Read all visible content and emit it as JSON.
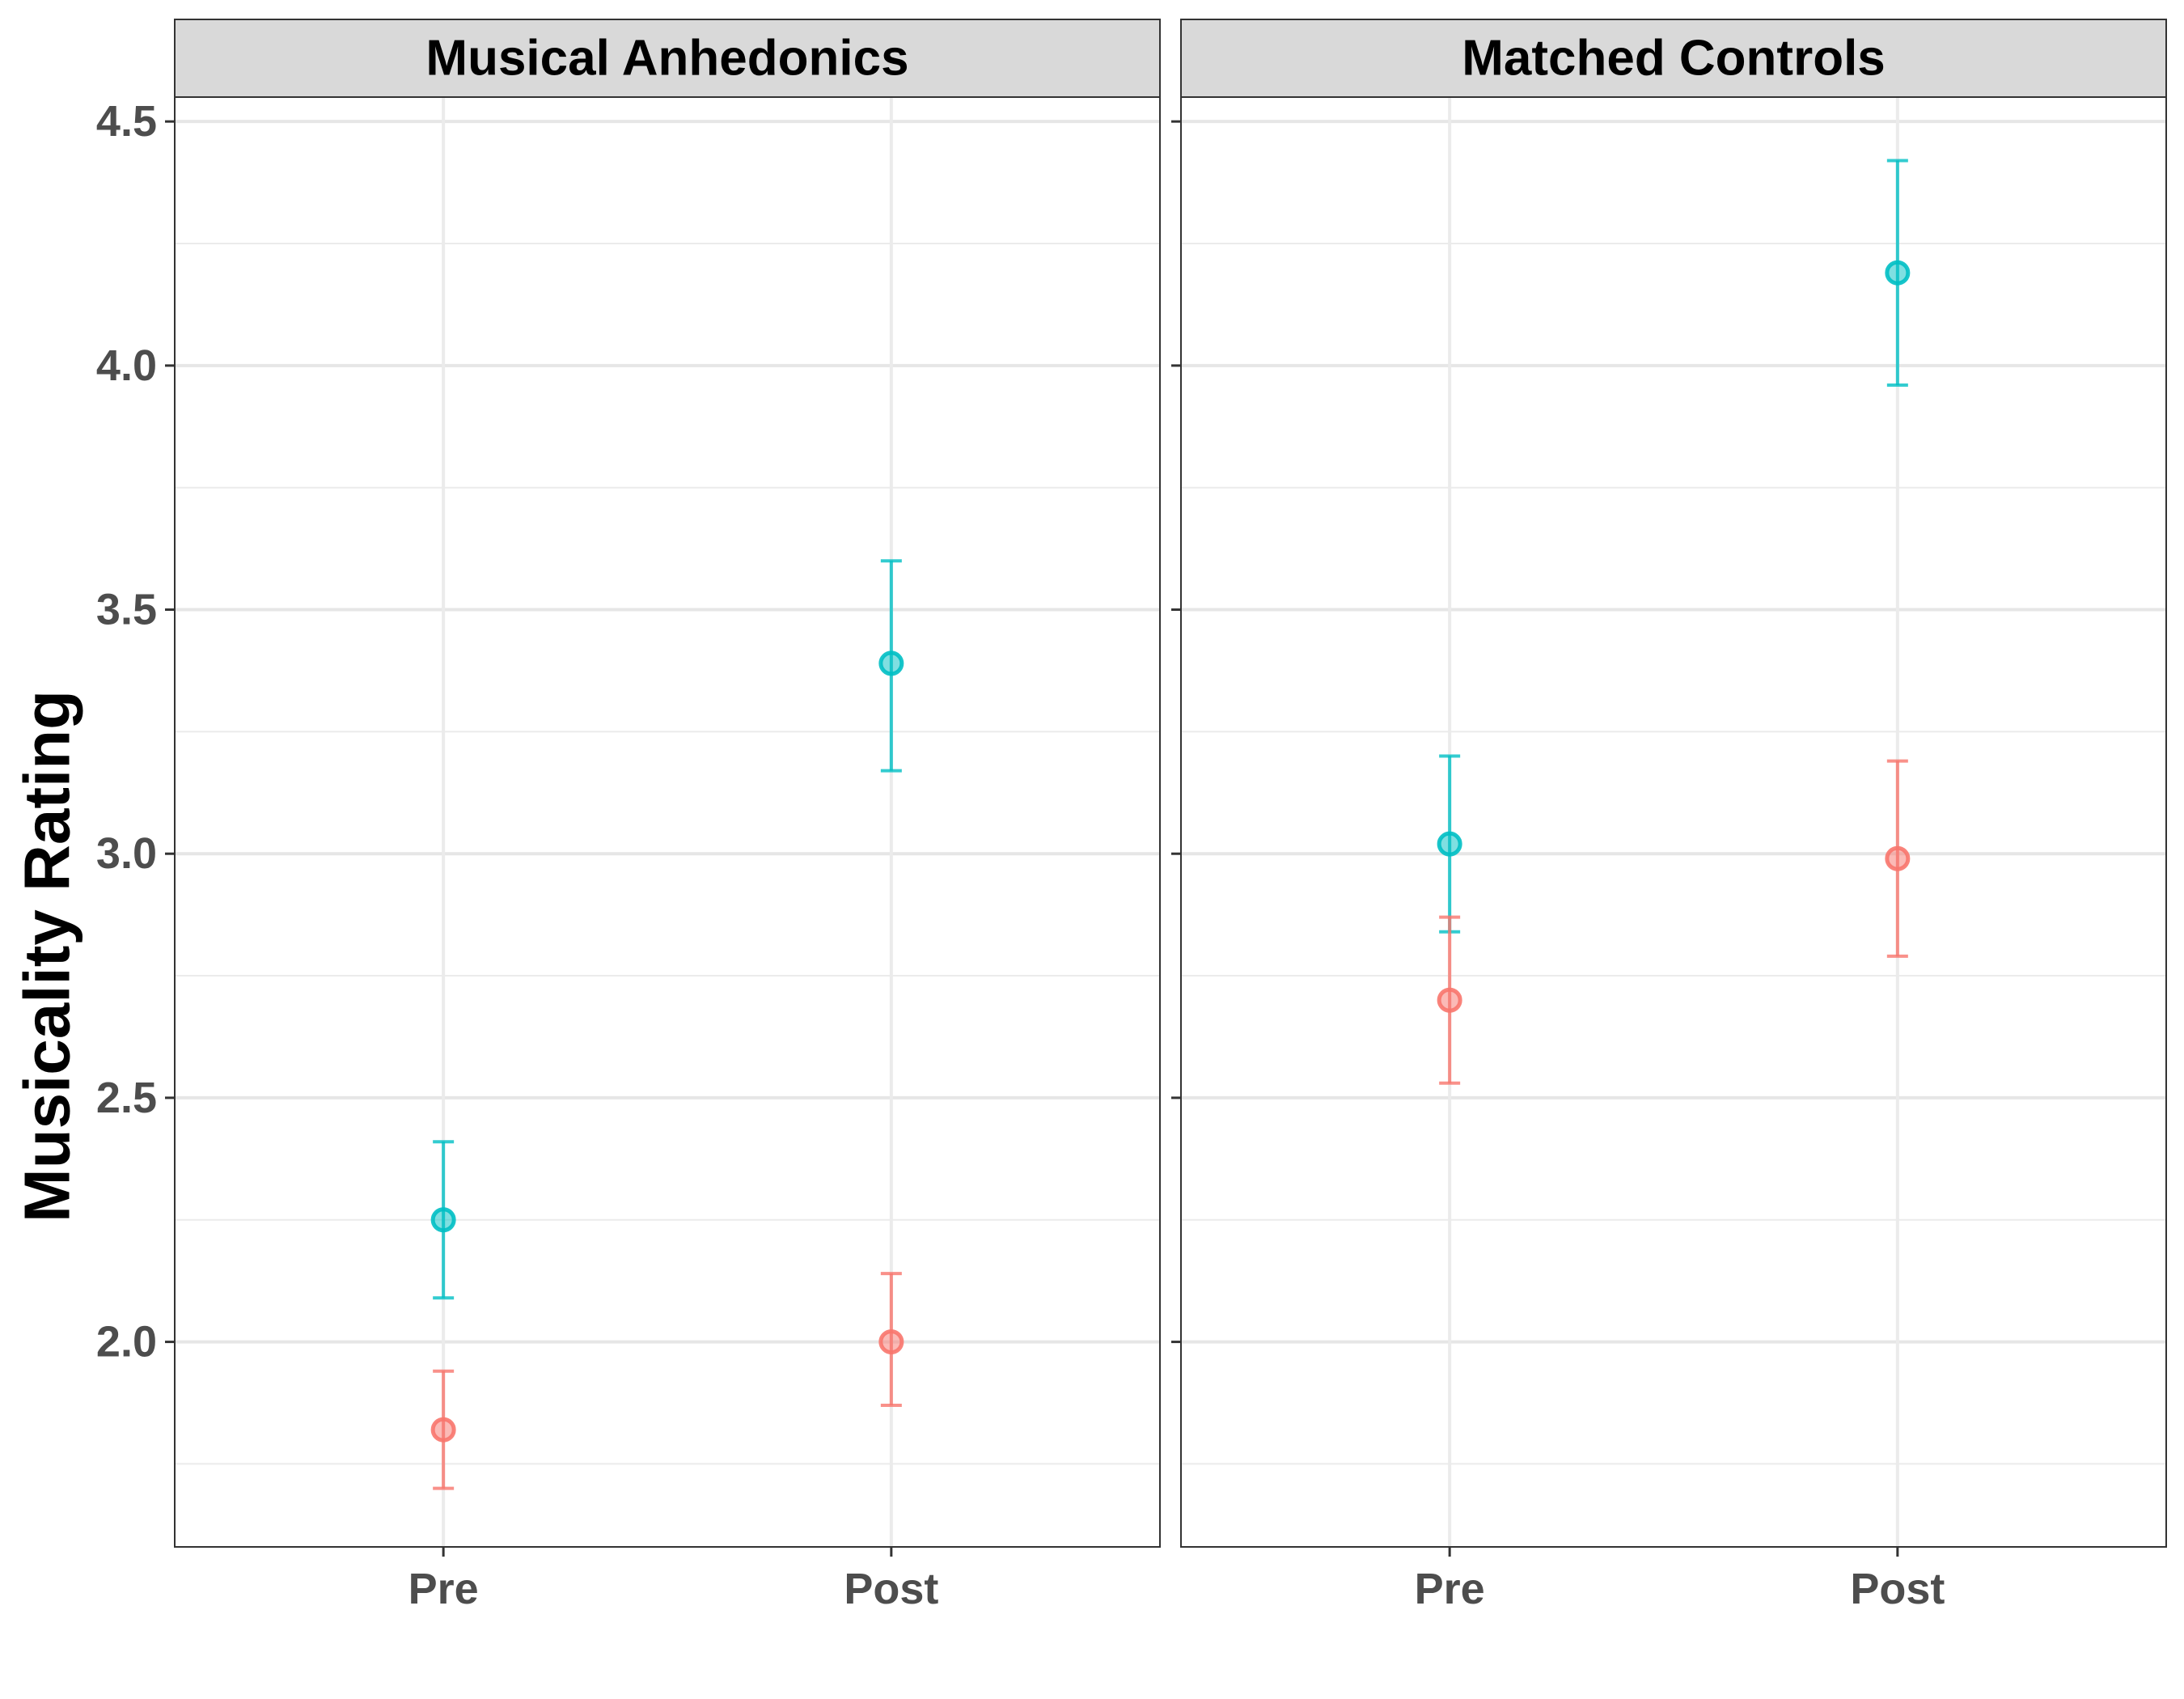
{
  "chart_data": {
    "type": "scatter",
    "ylabel": "Musicality Rating",
    "xlabel": "",
    "categories": [
      "Pre",
      "Post"
    ],
    "yticks": [
      "2.0",
      "2.5",
      "3.0",
      "3.5",
      "4.0",
      "4.5"
    ],
    "ylim": [
      1.58,
      4.55
    ],
    "grid": true,
    "legend": "none",
    "series_colors": [
      "#00BFC4",
      "#F8766D"
    ],
    "panels": [
      {
        "title": "Musical Anhedonics",
        "series": [
          {
            "color": "#00BFC4",
            "points": [
              {
                "x": "Pre",
                "y": 2.25,
                "ymin": 2.09,
                "ymax": 2.41
              },
              {
                "x": "Post",
                "y": 3.39,
                "ymin": 3.17,
                "ymax": 3.6
              }
            ]
          },
          {
            "color": "#F8766D",
            "points": [
              {
                "x": "Pre",
                "y": 1.82,
                "ymin": 1.7,
                "ymax": 1.94
              },
              {
                "x": "Post",
                "y": 2.0,
                "ymin": 1.87,
                "ymax": 2.14
              }
            ]
          }
        ]
      },
      {
        "title": "Matched Controls",
        "series": [
          {
            "color": "#00BFC4",
            "points": [
              {
                "x": "Pre",
                "y": 3.02,
                "ymin": 2.84,
                "ymax": 3.2
              },
              {
                "x": "Post",
                "y": 4.19,
                "ymin": 3.96,
                "ymax": 4.42
              }
            ]
          },
          {
            "color": "#F8766D",
            "points": [
              {
                "x": "Pre",
                "y": 2.7,
                "ymin": 2.53,
                "ymax": 2.87
              },
              {
                "x": "Post",
                "y": 2.99,
                "ymin": 2.79,
                "ymax": 3.19
              }
            ]
          }
        ]
      }
    ]
  }
}
